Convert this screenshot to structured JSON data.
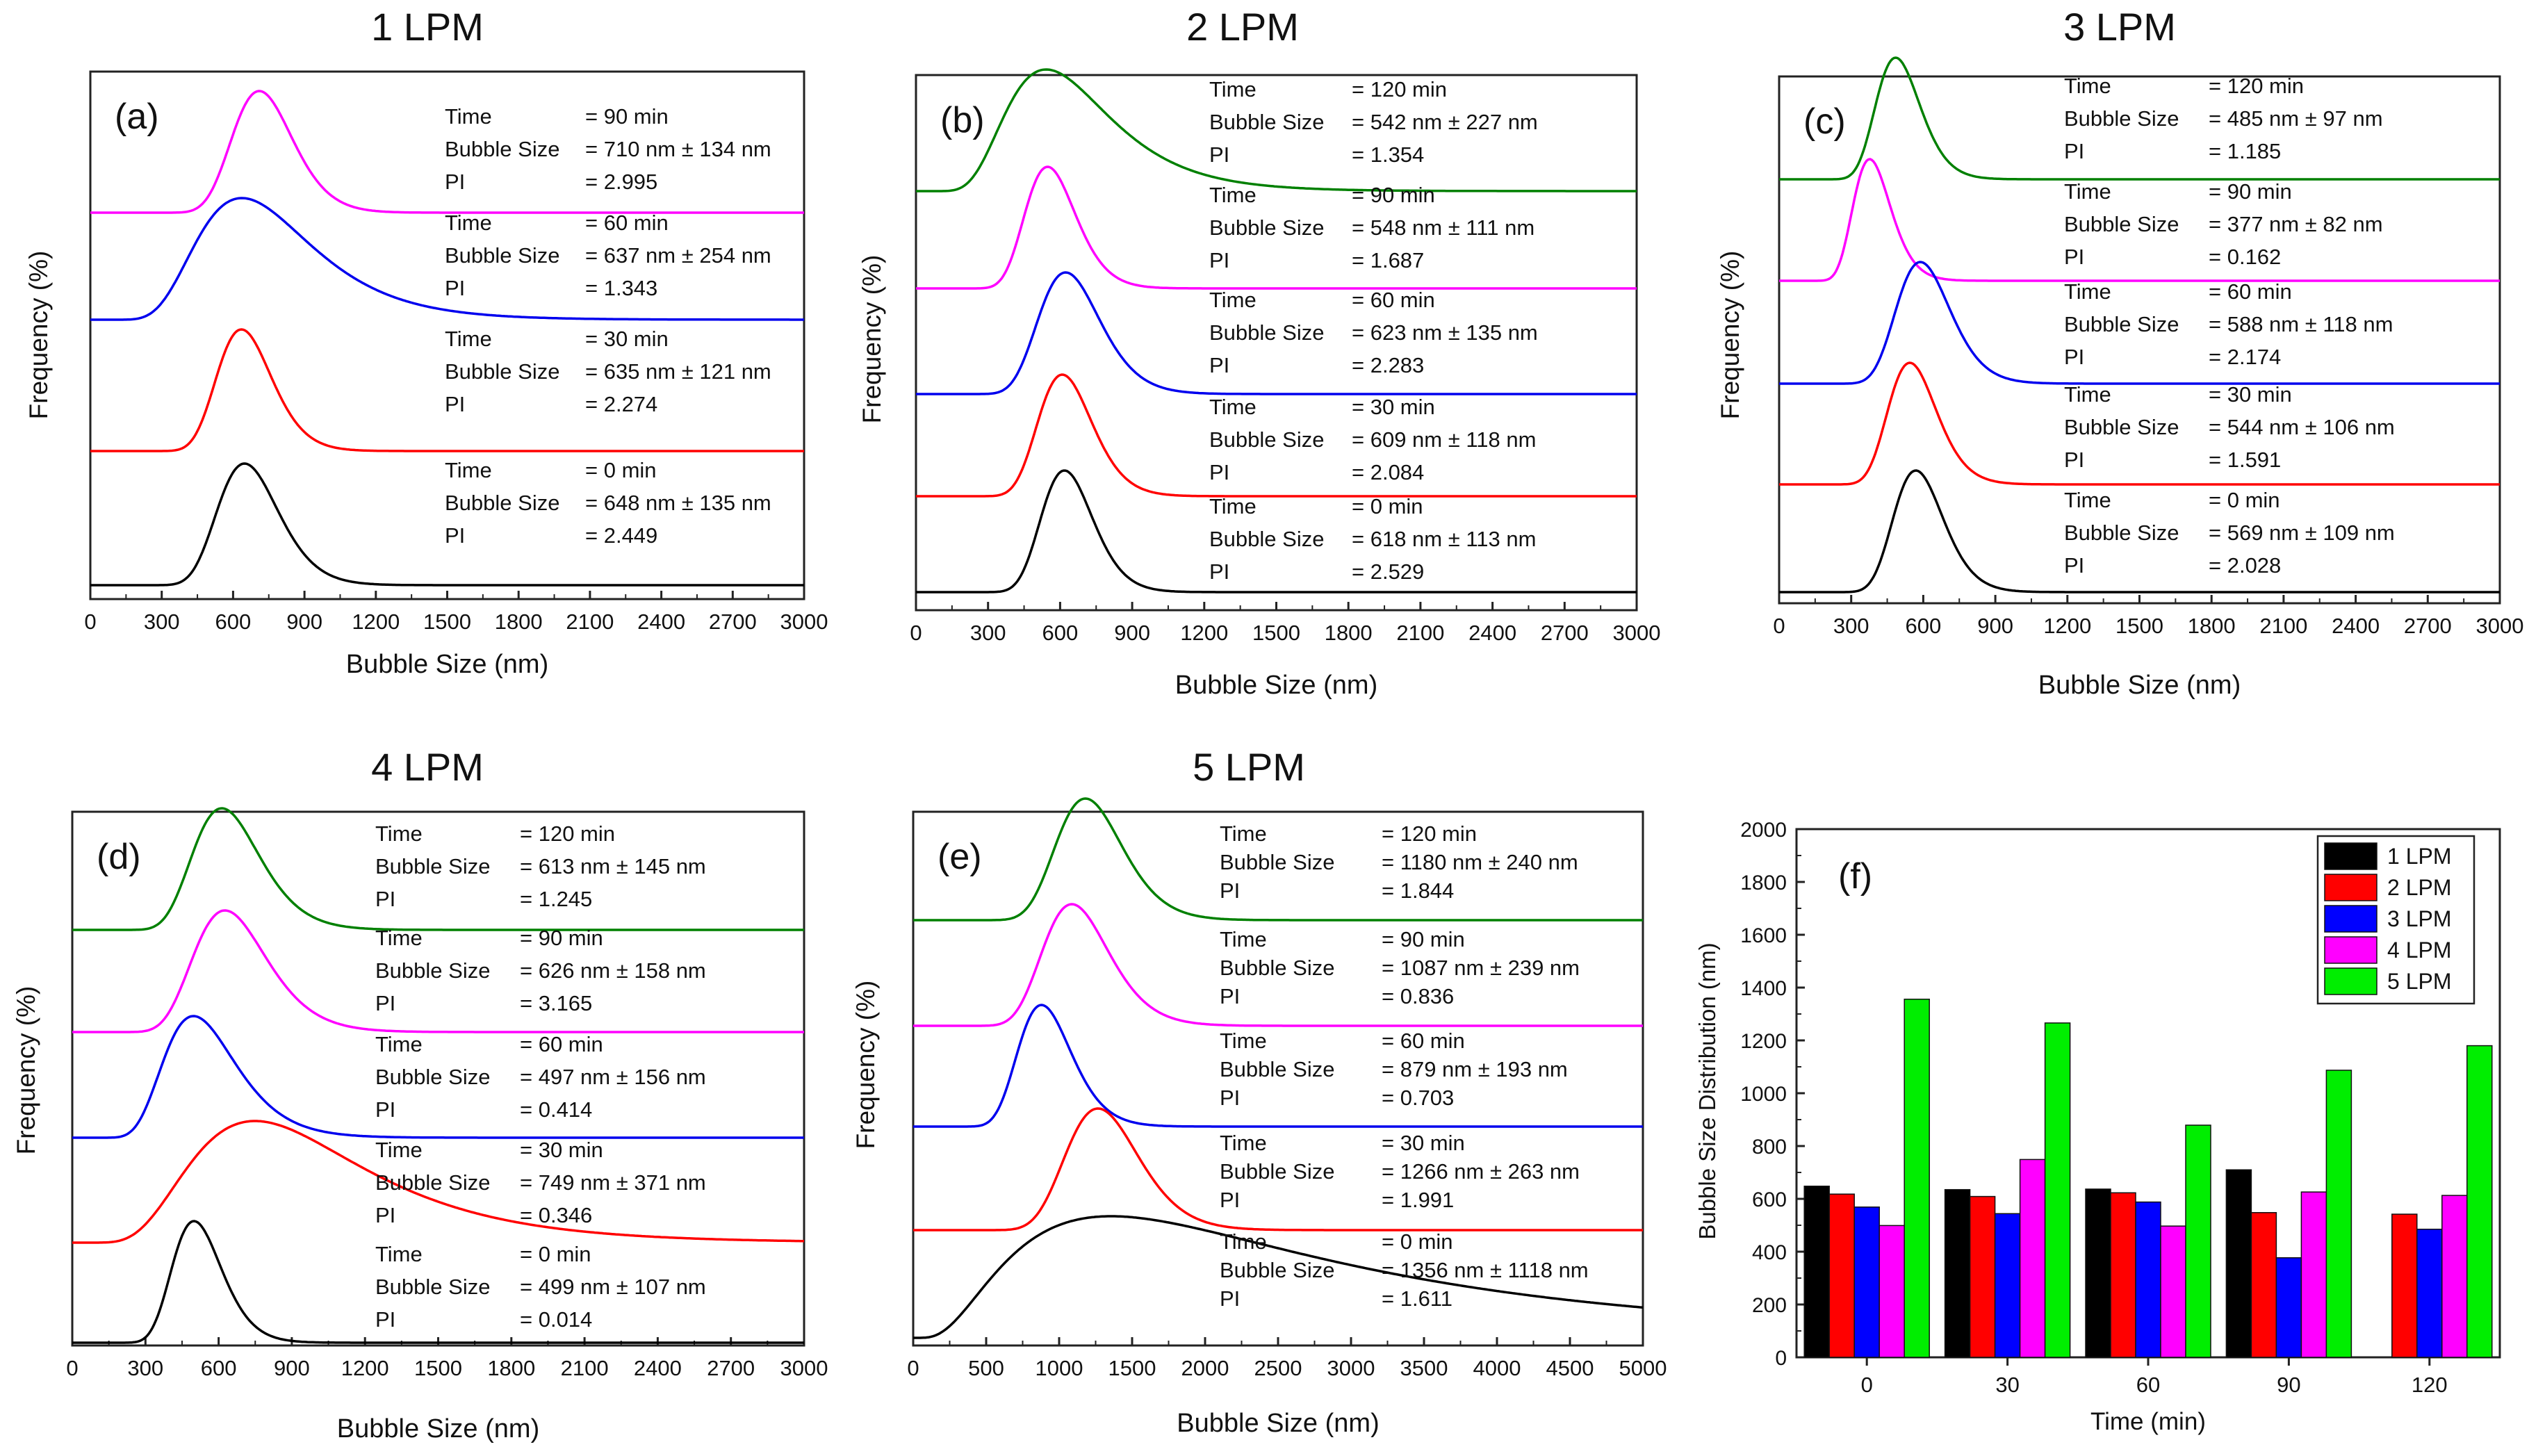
{
  "figure": {
    "chart_data": [
      {
        "id": "a",
        "type": "line",
        "chart_title": "1 LPM",
        "panel_label": "(a)",
        "xlabel": "Bubble Size (nm)",
        "ylabel": "Frequency (%)",
        "xlim": [
          0,
          3000
        ],
        "xticks": [
          "0",
          "300",
          "600",
          "900",
          "1200",
          "1500",
          "1800",
          "2100",
          "2400",
          "2700",
          "3000"
        ],
        "series": [
          {
            "color": "#ff00ff",
            "mean": 710,
            "sd": 134,
            "time": "= 90 min",
            "bubble": "= 710 nm ± 134 nm",
            "pi": "= 2.995"
          },
          {
            "color": "#0000ee",
            "mean": 637,
            "sd": 254,
            "time": "= 60 min",
            "bubble": "= 637 nm ± 254 nm",
            "pi": "= 1.343"
          },
          {
            "color": "#ff0000",
            "mean": 635,
            "sd": 121,
            "time": "= 30 min",
            "bubble": "= 635 nm ± 121 nm",
            "pi": "= 2.274"
          },
          {
            "color": "#000000",
            "mean": 648,
            "sd": 135,
            "time": "= 0 min",
            "bubble": "= 648 nm ± 135 nm",
            "pi": "= 2.449"
          }
        ]
      },
      {
        "id": "b",
        "type": "line",
        "chart_title": "2 LPM",
        "panel_label": "(b)",
        "xlabel": "Bubble Size (nm)",
        "ylabel": "Frequency (%)",
        "xlim": [
          0,
          3000
        ],
        "xticks": [
          "0",
          "300",
          "600",
          "900",
          "1200",
          "1500",
          "1800",
          "2100",
          "2400",
          "2700",
          "3000"
        ],
        "series": [
          {
            "color": "#008000",
            "mean": 542,
            "sd": 227,
            "time": "= 120 min",
            "bubble": "= 542 nm ± 227 nm",
            "pi": "= 1.354"
          },
          {
            "color": "#ff00ff",
            "mean": 548,
            "sd": 111,
            "time": "= 90 min",
            "bubble": "= 548 nm ± 111 nm",
            "pi": "= 1.687"
          },
          {
            "color": "#0000ee",
            "mean": 623,
            "sd": 135,
            "time": "= 60 min",
            "bubble": "= 623 nm ± 135 nm",
            "pi": "= 2.283"
          },
          {
            "color": "#ff0000",
            "mean": 609,
            "sd": 118,
            "time": "= 30 min",
            "bubble": "= 609 nm ± 118 nm",
            "pi": "= 2.084"
          },
          {
            "color": "#000000",
            "mean": 618,
            "sd": 113,
            "time": "= 0 min",
            "bubble": "= 618 nm ± 113 nm",
            "pi": "= 2.529"
          }
        ]
      },
      {
        "id": "c",
        "type": "line",
        "chart_title": "3 LPM",
        "panel_label": "(c)",
        "xlabel": "Bubble Size (nm)",
        "ylabel": "Frequency (%)",
        "xlim": [
          0,
          3000
        ],
        "xticks": [
          "0",
          "300",
          "600",
          "900",
          "1200",
          "1500",
          "1800",
          "2100",
          "2400",
          "2700",
          "3000"
        ],
        "series": [
          {
            "color": "#008000",
            "mean": 485,
            "sd": 97,
            "time": "= 120 min",
            "bubble": "= 485 nm ± 97 nm",
            "pi": "= 1.185"
          },
          {
            "color": "#ff00ff",
            "mean": 377,
            "sd": 82,
            "time": "= 90 min",
            "bubble": "= 377 nm ± 82 nm",
            "pi": "= 0.162"
          },
          {
            "color": "#0000ee",
            "mean": 588,
            "sd": 118,
            "time": "= 60 min",
            "bubble": "= 588 nm ± 118 nm",
            "pi": "= 2.174"
          },
          {
            "color": "#ff0000",
            "mean": 544,
            "sd": 106,
            "time": "= 30 min",
            "bubble": "= 544 nm ± 106 nm",
            "pi": "= 1.591"
          },
          {
            "color": "#000000",
            "mean": 569,
            "sd": 109,
            "time": "= 0 min",
            "bubble": "= 569 nm ± 109 nm",
            "pi": "= 2.028"
          }
        ]
      },
      {
        "id": "d",
        "type": "line",
        "chart_title": "4 LPM",
        "panel_label": "(d)",
        "xlabel": "Bubble Size (nm)",
        "ylabel": "Frequency (%)",
        "xlim": [
          0,
          3000
        ],
        "xticks": [
          "0",
          "300",
          "600",
          "900",
          "1200",
          "1500",
          "1800",
          "2100",
          "2400",
          "2700",
          "3000"
        ],
        "series": [
          {
            "color": "#008000",
            "mean": 613,
            "sd": 145,
            "time": "= 120 min",
            "bubble": "= 613 nm ± 145 nm",
            "pi": "= 1.245"
          },
          {
            "color": "#ff00ff",
            "mean": 626,
            "sd": 158,
            "time": "= 90 min",
            "bubble": "= 626 nm ± 158 nm",
            "pi": "= 3.165"
          },
          {
            "color": "#0000ee",
            "mean": 497,
            "sd": 156,
            "time": "= 60 min",
            "bubble": "= 497 nm ± 156 nm",
            "pi": "= 0.414"
          },
          {
            "color": "#ff0000",
            "mean": 749,
            "sd": 371,
            "time": "= 30 min",
            "bubble": "= 749 nm ± 371 nm",
            "pi": "= 0.346"
          },
          {
            "color": "#000000",
            "mean": 499,
            "sd": 107,
            "time": "= 0 min",
            "bubble": "= 499 nm ± 107 nm",
            "pi": "= 0.014"
          }
        ]
      },
      {
        "id": "e",
        "type": "line",
        "chart_title": "5 LPM",
        "panel_label": "(e)",
        "xlabel": "Bubble Size (nm)",
        "ylabel": "Frequency (%)",
        "xlim": [
          0,
          5000
        ],
        "xticks": [
          "0",
          "500",
          "1000",
          "1500",
          "2000",
          "2500",
          "3000",
          "3500",
          "4000",
          "4500",
          "5000"
        ],
        "series": [
          {
            "color": "#008000",
            "mean": 1180,
            "sd": 240,
            "time": "= 120 min",
            "bubble": "= 1180 nm ± 240 nm",
            "pi": "= 1.844"
          },
          {
            "color": "#ff00ff",
            "mean": 1087,
            "sd": 239,
            "time": "= 90 min",
            "bubble": "= 1087 nm ± 239 nm",
            "pi": "= 0.836"
          },
          {
            "color": "#0000ee",
            "mean": 879,
            "sd": 193,
            "time": "= 60 min",
            "bubble": "= 879 nm ± 193 nm",
            "pi": "= 0.703"
          },
          {
            "color": "#ff0000",
            "mean": 1266,
            "sd": 263,
            "time": "= 30 min",
            "bubble": "= 1266 nm ± 263 nm",
            "pi": "= 1.991"
          },
          {
            "color": "#000000",
            "mean": 1356,
            "sd": 1118,
            "time": "= 0 min",
            "bubble": "= 1356 nm ± 1118 nm",
            "pi": "= 1.611"
          }
        ]
      },
      {
        "id": "f",
        "type": "bar",
        "panel_label": "(f)",
        "xlabel": "Time (min)",
        "ylabel": "Bubble Size Distribution (nm)",
        "ylim": [
          0,
          2000
        ],
        "yticks": [
          "0",
          "200",
          "400",
          "600",
          "800",
          "1000",
          "1200",
          "1400",
          "1600",
          "1800",
          "2000"
        ],
        "categories": [
          "0",
          "30",
          "60",
          "90",
          "120"
        ],
        "legend_position": "top-right",
        "series": [
          {
            "name": "1 LPM",
            "color": "#000000",
            "values": [
              648,
              635,
              637,
              710,
              null
            ]
          },
          {
            "name": "2 LPM",
            "color": "#ff0000",
            "values": [
              618,
              609,
              623,
              548,
              542
            ]
          },
          {
            "name": "3 LPM",
            "color": "#0000ff",
            "values": [
              569,
              544,
              588,
              377,
              485
            ]
          },
          {
            "name": "4 LPM",
            "color": "#ff00ff",
            "values": [
              499,
              749,
              497,
              626,
              613
            ]
          },
          {
            "name": "5 LPM",
            "color": "#00ee00",
            "values": [
              1356,
              1266,
              879,
              1087,
              1180
            ]
          }
        ]
      }
    ],
    "annotation_labels": {
      "time": "Time",
      "bubble": "Bubble Size",
      "pi": "PI"
    }
  }
}
